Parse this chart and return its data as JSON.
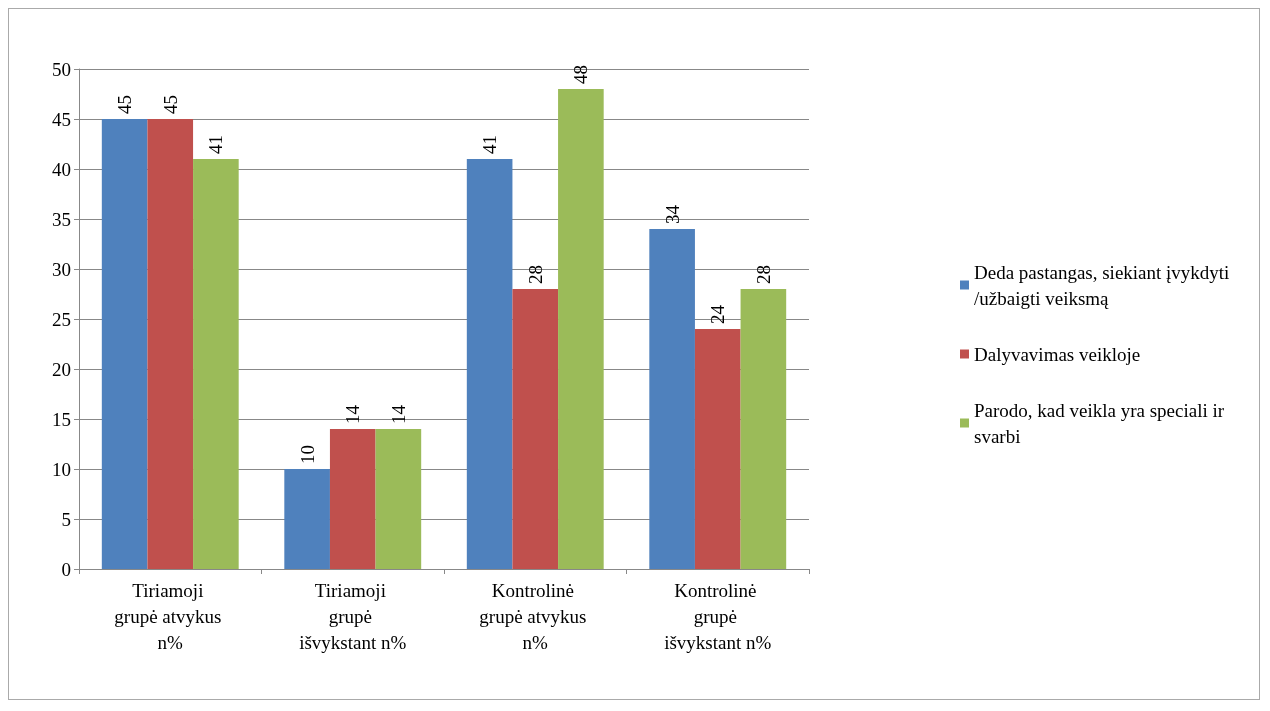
{
  "chart_data": {
    "type": "bar",
    "categories": [
      "Tiriamoji grupė atvykus n%",
      "Tiriamoji grupė išvykstant n%",
      "Kontrolinė grupė atvykus n%",
      "Kontrolinė grupė išvykstant n%"
    ],
    "series": [
      {
        "name": "Deda pastangas, siekiant įvykdyti/užbaigti veiksmą",
        "color": "#4f81bd",
        "values": [
          45,
          10,
          41,
          34
        ]
      },
      {
        "name": "Dalyvavimas veikloje",
        "color": "#c0504d",
        "values": [
          45,
          14,
          28,
          24
        ]
      },
      {
        "name": "Parodo, kad veikla yra speciali ir svarbi",
        "color": "#9bbb59",
        "values": [
          41,
          14,
          48,
          28
        ]
      }
    ],
    "ylim": [
      0,
      50
    ],
    "yticks": [
      0,
      5,
      10,
      15,
      20,
      25,
      30,
      35,
      40,
      45,
      50
    ],
    "grid": "y",
    "legend": "right",
    "data_labels": true
  }
}
